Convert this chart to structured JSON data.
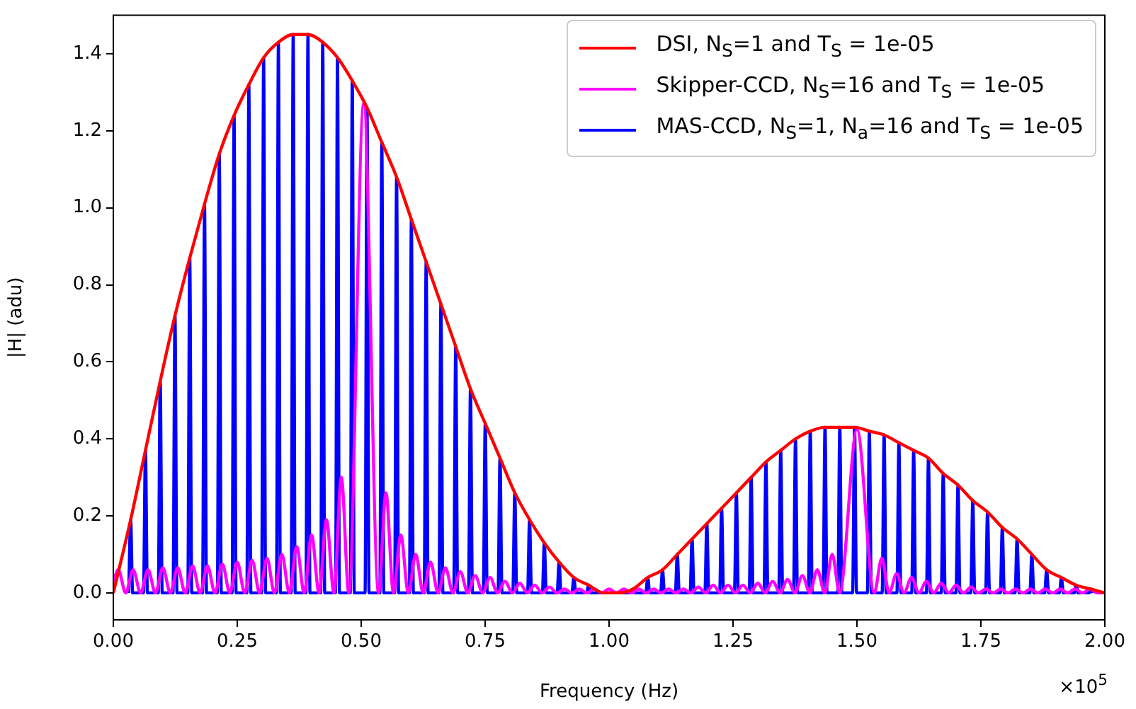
{
  "chart_data": {
    "type": "line",
    "xlabel": "Frequency (Hz)",
    "ylabel": "|H| (adu)",
    "xlim": [
      0,
      2
    ],
    "ylim": [
      -0.07,
      1.5
    ],
    "xticks": [
      {
        "value": 0,
        "label": "0.00"
      },
      0.25,
      {
        "value": 0.5,
        "label": "0.50"
      },
      0.75,
      {
        "value": 1,
        "label": "1.00"
      },
      1.25,
      {
        "value": 1.5,
        "label": "1.50"
      },
      1.75,
      {
        "value": 2,
        "label": "2.00"
      }
    ],
    "yticks": [
      {
        "value": 0,
        "label": "0.0"
      },
      0.2,
      0.4,
      0.6,
      0.8,
      {
        "value": 1,
        "label": "1.0"
      },
      1.2,
      1.4
    ],
    "annotations": [
      "×10$^{5}$"
    ],
    "legend": "top right",
    "marker": "none",
    "series": [
      {
        "name": "DSI, N$_{S}$=1 and T$_{S}$ = 1e-05",
        "color": "#ff0000",
        "x": [
          0,
          0.035,
          0.0648,
          0.0946,
          0.1244,
          0.1542,
          0.184,
          0.2138,
          0.2436,
          0.2734,
          0.3032,
          0.333,
          0.3628,
          0.3926,
          0.4224,
          0.4522,
          0.482,
          0.5118,
          0.5416,
          0.5714,
          0.6012,
          0.631,
          0.6608,
          0.6906,
          0.7204,
          0.7502,
          0.78,
          0.8098,
          0.8396,
          0.8694,
          0.8992,
          0.929,
          0.9588,
          0.9886,
          1,
          1.0184,
          1.0482,
          1.078,
          1.1078,
          1.1376,
          1.1674,
          1.1972,
          1.227,
          1.2568,
          1.2866,
          1.3164,
          1.3462,
          1.376,
          1.4058,
          1.4356,
          1.4654,
          1.4952,
          1.525,
          1.5548,
          1.5846,
          1.6144,
          1.6442,
          1.674,
          1.7038,
          1.7336,
          1.7634,
          1.7932,
          1.823,
          1.8528,
          1.8826,
          1.9124,
          1.9422,
          1.972,
          2
        ],
        "values": [
          0,
          0.19,
          0.37,
          0.55,
          0.72,
          0.87,
          1.01,
          1.14,
          1.24,
          1.32,
          1.39,
          1.43,
          1.45,
          1.45,
          1.43,
          1.39,
          1.33,
          1.26,
          1.17,
          1.08,
          0.97,
          0.86,
          0.75,
          0.64,
          0.53,
          0.44,
          0.35,
          0.26,
          0.19,
          0.13,
          0.08,
          0.04,
          0.02,
          0,
          0,
          0,
          0.01,
          0.04,
          0.06,
          0.1,
          0.14,
          0.18,
          0.22,
          0.26,
          0.3,
          0.34,
          0.37,
          0.4,
          0.42,
          0.43,
          0.43,
          0.43,
          0.42,
          0.41,
          0.39,
          0.37,
          0.35,
          0.31,
          0.28,
          0.24,
          0.21,
          0.17,
          0.14,
          0.1,
          0.06,
          0.04,
          0.02,
          0.01,
          0
        ]
      },
      {
        "name": "Skipper-CCD, N$_{S}$=16 and T$_{S}$ = 1e-05",
        "color": "#ff00ff",
        "x": [
          0,
          0.01,
          0.025,
          0.04,
          0.055,
          0.07,
          0.085,
          0.1,
          0.115,
          0.13,
          0.145,
          0.16,
          0.175,
          0.19,
          0.205,
          0.22,
          0.235,
          0.25,
          0.265,
          0.28,
          0.295,
          0.31,
          0.325,
          0.34,
          0.355,
          0.37,
          0.385,
          0.4,
          0.415,
          0.43,
          0.445,
          0.46,
          0.475,
          0.505,
          0.535,
          0.55,
          0.565,
          0.58,
          0.595,
          0.61,
          0.625,
          0.64,
          0.655,
          0.67,
          0.685,
          0.7,
          0.715,
          0.73,
          0.745,
          0.76,
          0.775,
          0.79,
          0.805,
          0.82,
          0.835,
          0.85,
          0.865,
          0.88,
          0.895,
          0.91,
          0.925,
          0.94,
          0.955,
          0.97,
          0.985,
          1,
          1.015,
          1.03,
          1.045,
          1.06,
          1.075,
          1.09,
          1.105,
          1.12,
          1.135,
          1.15,
          1.165,
          1.18,
          1.195,
          1.21,
          1.225,
          1.24,
          1.255,
          1.27,
          1.285,
          1.3,
          1.315,
          1.33,
          1.345,
          1.36,
          1.375,
          1.39,
          1.405,
          1.42,
          1.435,
          1.45,
          1.465,
          1.5,
          1.535,
          1.55,
          1.565,
          1.58,
          1.595,
          1.61,
          1.625,
          1.64,
          1.655,
          1.67,
          1.685,
          1.7,
          1.715,
          1.73,
          1.745,
          1.76,
          1.775,
          1.79,
          1.805,
          1.82,
          1.835,
          1.85,
          1.865,
          1.88,
          1.895,
          1.91,
          1.925,
          1.94,
          1.955,
          1.97,
          1.985,
          2
        ],
        "values": [
          0.03,
          0.06,
          0,
          0.06,
          0,
          0.06,
          0,
          0.065,
          0,
          0.065,
          0,
          0.07,
          0,
          0.07,
          0,
          0.075,
          0,
          0.08,
          0,
          0.085,
          0,
          0.09,
          0,
          0.1,
          0,
          0.12,
          0,
          0.15,
          0,
          0.19,
          0,
          0.3,
          0,
          1.27,
          0,
          0.26,
          0,
          0.15,
          0,
          0.1,
          0,
          0.08,
          0,
          0.065,
          0,
          0.055,
          0,
          0.045,
          0,
          0.04,
          0,
          0.03,
          0,
          0.025,
          0,
          0.02,
          0,
          0.015,
          0,
          0.01,
          0,
          0.01,
          0,
          0.01,
          0,
          0.01,
          0,
          0.01,
          0,
          0.01,
          0,
          0.01,
          0,
          0.01,
          0,
          0.01,
          0,
          0.015,
          0,
          0.02,
          0,
          0.02,
          0,
          0.02,
          0,
          0.025,
          0,
          0.03,
          0,
          0.035,
          0,
          0.045,
          0,
          0.06,
          0,
          0.1,
          0,
          0.425,
          0,
          0.09,
          0,
          0.05,
          0,
          0.04,
          0,
          0.03,
          0,
          0.025,
          0,
          0.02,
          0,
          0.015,
          0,
          0.01,
          0,
          0.01,
          0,
          0.01,
          0,
          0.01,
          0,
          0.01,
          0,
          0.01,
          0,
          0.01,
          0,
          0.01,
          0,
          0
        ]
      },
      {
        "name": "MAS-CCD, N$_{S}$=1, N$_{a}$=16 and T$_{S}$ = 1e-05",
        "color": "#0000ff",
        "x": [
          0.031,
          0.035,
          0.039,
          0.0608,
          0.0648,
          0.0688,
          0.0906,
          0.0946,
          0.0986,
          0.1204,
          0.1244,
          0.1284,
          0.1502,
          0.1542,
          0.1582,
          0.18,
          0.184,
          0.188,
          0.2098,
          0.2138,
          0.2178,
          0.2396,
          0.2436,
          0.2476,
          0.2694,
          0.2734,
          0.2774,
          0.2992,
          0.3032,
          0.3072,
          0.329,
          0.333,
          0.337,
          0.3588,
          0.3628,
          0.3668,
          0.3886,
          0.3926,
          0.3966,
          0.4184,
          0.4224,
          0.4264,
          0.4482,
          0.4522,
          0.4562,
          0.478,
          0.482,
          0.486,
          0.5078,
          0.5118,
          0.5158,
          0.5376,
          0.5416,
          0.5456,
          0.5674,
          0.5714,
          0.5754,
          0.5972,
          0.6012,
          0.6052,
          0.627,
          0.631,
          0.635,
          0.6568,
          0.6608,
          0.6648,
          0.6866,
          0.6906,
          0.6946,
          0.7164,
          0.7204,
          0.7244,
          0.7462,
          0.7502,
          0.7542,
          0.776,
          0.78,
          0.784,
          0.8058,
          0.8098,
          0.8138,
          0.8356,
          0.8396,
          0.8436,
          0.8654,
          0.8694,
          0.8734,
          0.8952,
          0.8992,
          0.9032,
          0.925,
          0.929,
          0.933,
          0.9548,
          0.9588,
          0.9628,
          0.9846,
          0.9886,
          0.9926,
          1.0144,
          1.0184,
          1.0224,
          1.0442,
          1.0482,
          1.0522,
          1.074,
          1.078,
          1.082,
          1.1038,
          1.1078,
          1.1118,
          1.1336,
          1.1376,
          1.1416,
          1.1634,
          1.1674,
          1.1714,
          1.1932,
          1.1972,
          1.2012,
          1.223,
          1.227,
          1.231,
          1.2528,
          1.2568,
          1.2608,
          1.2826,
          1.2866,
          1.2906,
          1.3124,
          1.3164,
          1.3204,
          1.3422,
          1.3462,
          1.3502,
          1.372,
          1.376,
          1.38,
          1.4018,
          1.4058,
          1.4098,
          1.4316,
          1.4356,
          1.4396,
          1.4614,
          1.4654,
          1.4694,
          1.4912,
          1.4952,
          1.4992,
          1.521,
          1.525,
          1.529,
          1.5508,
          1.5548,
          1.5588,
          1.5806,
          1.5846,
          1.5886,
          1.6104,
          1.6144,
          1.6184,
          1.6402,
          1.6442,
          1.6482,
          1.67,
          1.674,
          1.678,
          1.6998,
          1.7038,
          1.7078,
          1.7296,
          1.7336,
          1.7376,
          1.7594,
          1.7634,
          1.7674,
          1.7892,
          1.7932,
          1.7972,
          1.819,
          1.823,
          1.827,
          1.8488,
          1.8528,
          1.8568,
          1.8786,
          1.8826,
          1.8866,
          1.9084,
          1.9124,
          1.9164,
          1.9382,
          1.9422,
          1.9462,
          1.968,
          1.972,
          1.976
        ],
        "values": [
          0,
          0.19,
          0,
          0,
          0.37,
          0,
          0,
          0.55,
          0,
          0,
          0.72,
          0,
          0,
          0.87,
          0,
          0,
          1.01,
          0,
          0,
          1.14,
          0,
          0,
          1.24,
          0,
          0,
          1.32,
          0,
          0,
          1.39,
          0,
          0,
          1.43,
          0,
          0,
          1.45,
          0,
          0,
          1.45,
          0,
          0,
          1.43,
          0,
          0,
          1.39,
          0,
          0,
          1.33,
          0,
          0,
          1.26,
          0,
          0,
          1.17,
          0,
          0,
          1.08,
          0,
          0,
          0.97,
          0,
          0,
          0.86,
          0,
          0,
          0.75,
          0,
          0,
          0.64,
          0,
          0,
          0.53,
          0,
          0,
          0.44,
          0,
          0,
          0.35,
          0,
          0,
          0.26,
          0,
          0,
          0.19,
          0,
          0,
          0.13,
          0,
          0,
          0.08,
          0,
          0,
          0.04,
          0,
          0,
          0.02,
          0,
          0,
          0,
          0,
          0,
          0,
          0,
          0,
          0.01,
          0,
          0,
          0.04,
          0,
          0,
          0.06,
          0,
          0,
          0.1,
          0,
          0,
          0.14,
          0,
          0,
          0.18,
          0,
          0,
          0.22,
          0,
          0,
          0.26,
          0,
          0,
          0.3,
          0,
          0,
          0.34,
          0,
          0,
          0.37,
          0,
          0,
          0.4,
          0,
          0,
          0.42,
          0,
          0,
          0.43,
          0,
          0,
          0.43,
          0,
          0,
          0.43,
          0,
          0,
          0.42,
          0,
          0,
          0.41,
          0,
          0,
          0.39,
          0,
          0,
          0.37,
          0,
          0,
          0.35,
          0,
          0,
          0.31,
          0,
          0,
          0.28,
          0,
          0,
          0.24,
          0,
          0,
          0.21,
          0,
          0,
          0.17,
          0,
          0,
          0.14,
          0,
          0,
          0.1,
          0,
          0,
          0.06,
          0,
          0,
          0.04,
          0,
          0,
          0.02,
          0,
          0,
          0.01,
          0
        ]
      }
    ]
  }
}
